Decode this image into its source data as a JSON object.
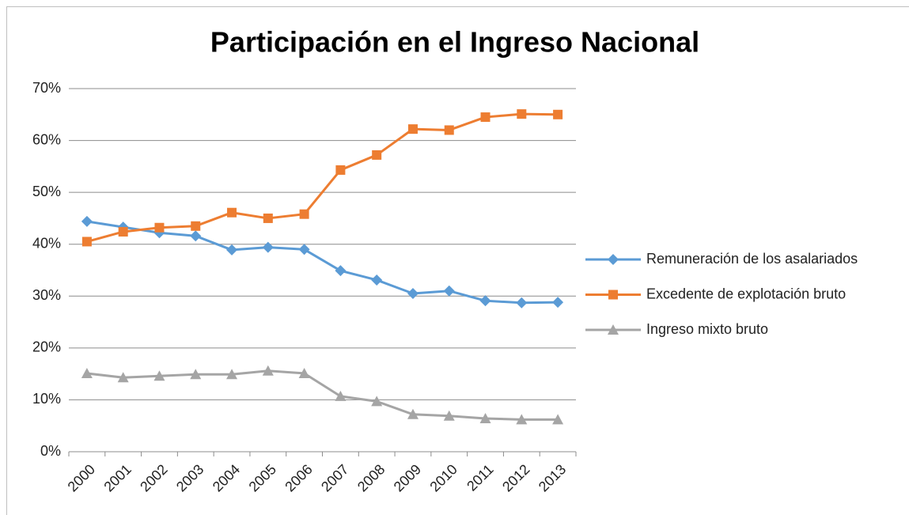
{
  "chart_data": {
    "type": "line",
    "title": "Participación en el Ingreso Nacional",
    "categories": [
      "2000",
      "2001",
      "2002",
      "2003",
      "2004",
      "2005",
      "2006",
      "2007",
      "2008",
      "2009",
      "2010",
      "2011",
      "2012",
      "2013"
    ],
    "series": [
      {
        "name": "Remuneración de los asalariados",
        "color": "#5b9bd5",
        "marker": "diamond",
        "values": [
          44.4,
          43.3,
          42.2,
          41.6,
          38.9,
          39.4,
          39.0,
          34.9,
          33.1,
          30.5,
          31.0,
          29.1,
          28.7,
          28.8
        ]
      },
      {
        "name": "Excedente de explotación bruto",
        "color": "#ed7d31",
        "marker": "square",
        "values": [
          40.5,
          42.4,
          43.2,
          43.5,
          46.1,
          45.0,
          45.8,
          54.3,
          57.2,
          62.2,
          62.0,
          64.5,
          65.1,
          65.0
        ]
      },
      {
        "name": "Ingreso mixto bruto",
        "color": "#a5a5a5",
        "marker": "triangle",
        "values": [
          15.1,
          14.3,
          14.6,
          14.9,
          14.9,
          15.6,
          15.1,
          10.7,
          9.7,
          7.2,
          6.9,
          6.4,
          6.2,
          6.2
        ]
      }
    ],
    "ylim": [
      0,
      70
    ],
    "yticks": [
      {
        "value": 0,
        "label": "0%"
      },
      {
        "value": 10,
        "label": "10%"
      },
      {
        "value": 20,
        "label": "20%"
      },
      {
        "value": 30,
        "label": "30%"
      },
      {
        "value": 40,
        "label": "40%"
      },
      {
        "value": 50,
        "label": "50%"
      },
      {
        "value": 60,
        "label": "60%"
      },
      {
        "value": 70,
        "label": "70%"
      }
    ],
    "grid": true,
    "legend": "right"
  }
}
